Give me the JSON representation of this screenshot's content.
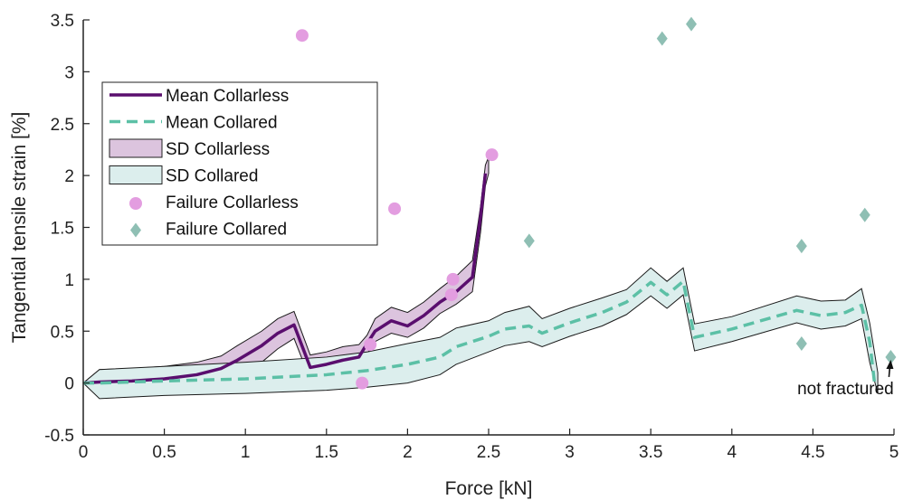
{
  "chart_data": {
    "type": "line",
    "xlabel": "Force [kN]",
    "ylabel": "Tangential tensile strain [%]",
    "xlim": [
      0,
      5
    ],
    "ylim": [
      -0.5,
      3.5
    ],
    "xticks": [
      0,
      0.5,
      1,
      1.5,
      2,
      2.5,
      3,
      3.5,
      4,
      4.5,
      5
    ],
    "xtick_labels": [
      "0",
      "0.5",
      "1",
      "1.5",
      "2",
      "2.5",
      "3",
      "3.5",
      "4",
      "4.5",
      "5"
    ],
    "yticks": [
      -0.5,
      0,
      0.5,
      1,
      1.5,
      2,
      2.5,
      3,
      3.5
    ],
    "ytick_labels": [
      "-0.5",
      "0",
      "0.5",
      "1",
      "1.5",
      "2",
      "2.5",
      "3",
      "3.5"
    ],
    "grid": false,
    "legend_position": "upper-left",
    "series": [
      {
        "name": "Mean Collarless",
        "kind": "line",
        "style": "solid",
        "color": "#5a0e6e",
        "x": [
          0,
          0.1,
          0.3,
          0.5,
          0.7,
          0.85,
          0.95,
          1.1,
          1.2,
          1.3,
          1.4,
          1.5,
          1.6,
          1.7,
          1.75,
          1.8,
          1.9,
          2.0,
          2.1,
          2.2,
          2.3,
          2.4,
          2.45,
          2.48
        ],
        "y": [
          0,
          0.01,
          0.02,
          0.04,
          0.08,
          0.14,
          0.22,
          0.36,
          0.48,
          0.56,
          0.15,
          0.18,
          0.22,
          0.25,
          0.38,
          0.5,
          0.6,
          0.55,
          0.65,
          0.78,
          0.88,
          1.02,
          1.6,
          2.02
        ]
      },
      {
        "name": "Mean Collared",
        "kind": "line",
        "style": "dashed",
        "color": "#5cc0a6",
        "x": [
          0,
          0.1,
          0.5,
          1.0,
          1.5,
          1.75,
          2.0,
          2.2,
          2.3,
          2.5,
          2.6,
          2.75,
          2.83,
          3.0,
          3.2,
          3.35,
          3.5,
          3.6,
          3.7,
          3.77,
          4.0,
          4.4,
          4.55,
          4.7,
          4.8,
          4.85,
          4.88
        ],
        "y": [
          0,
          0.0,
          0.02,
          0.04,
          0.08,
          0.12,
          0.18,
          0.25,
          0.35,
          0.45,
          0.52,
          0.55,
          0.48,
          0.58,
          0.68,
          0.78,
          0.97,
          0.85,
          0.98,
          0.44,
          0.52,
          0.7,
          0.65,
          0.68,
          0.75,
          0.4,
          0.0
        ]
      },
      {
        "name": "SD Collarless",
        "kind": "band",
        "color": "#dcc4de",
        "x": [
          0,
          0.1,
          0.3,
          0.5,
          0.7,
          0.85,
          0.95,
          1.1,
          1.2,
          1.3,
          1.4,
          1.5,
          1.6,
          1.7,
          1.75,
          1.8,
          1.9,
          2.0,
          2.1,
          2.2,
          2.3,
          2.4,
          2.45,
          2.48,
          2.5
        ],
        "upper": [
          0,
          0.13,
          0.14,
          0.16,
          0.2,
          0.26,
          0.36,
          0.5,
          0.62,
          0.69,
          0.27,
          0.3,
          0.35,
          0.37,
          0.46,
          0.62,
          0.73,
          0.68,
          0.78,
          0.91,
          1.03,
          1.18,
          1.7,
          2.1,
          2.18
        ],
        "lower": [
          0,
          -0.13,
          -0.12,
          -0.1,
          -0.06,
          -0.01,
          0.06,
          0.2,
          0.33,
          0.43,
          0.03,
          0.06,
          0.1,
          0.13,
          0.28,
          0.4,
          0.48,
          0.44,
          0.53,
          0.67,
          0.76,
          0.88,
          1.45,
          1.9,
          2.02
        ]
      },
      {
        "name": "SD Collared",
        "kind": "band",
        "color": "#dceeed",
        "x": [
          0,
          0.1,
          0.5,
          1.0,
          1.5,
          1.75,
          2.0,
          2.2,
          2.3,
          2.5,
          2.6,
          2.75,
          2.83,
          3.0,
          3.2,
          3.35,
          3.5,
          3.6,
          3.7,
          3.77,
          4.0,
          4.4,
          4.55,
          4.7,
          4.8,
          4.85,
          4.9
        ],
        "upper": [
          0,
          0.13,
          0.16,
          0.2,
          0.25,
          0.3,
          0.38,
          0.44,
          0.53,
          0.6,
          0.68,
          0.74,
          0.62,
          0.72,
          0.82,
          0.9,
          1.11,
          0.98,
          1.11,
          0.57,
          0.64,
          0.84,
          0.79,
          0.8,
          0.91,
          0.58,
          0.1
        ],
        "lower": [
          0,
          -0.15,
          -0.12,
          -0.1,
          -0.07,
          -0.04,
          0.0,
          0.08,
          0.18,
          0.3,
          0.36,
          0.4,
          0.35,
          0.45,
          0.55,
          0.66,
          0.84,
          0.72,
          0.85,
          0.31,
          0.4,
          0.58,
          0.52,
          0.55,
          0.62,
          0.2,
          -0.1
        ]
      },
      {
        "name": "Failure Collarless",
        "kind": "scatter",
        "marker": "circle",
        "color": "#e39de0",
        "x": [
          1.35,
          1.92,
          2.52,
          1.72,
          1.77,
          2.28,
          2.27
        ],
        "y": [
          3.35,
          1.68,
          2.2,
          0.0,
          0.37,
          1.0,
          0.85
        ]
      },
      {
        "name": "Failure Collared",
        "kind": "scatter",
        "marker": "diamond",
        "color": "#8fbfb4",
        "x": [
          3.57,
          3.75,
          2.75,
          4.82,
          4.43,
          4.43,
          4.98
        ],
        "y": [
          3.32,
          3.46,
          1.37,
          1.62,
          1.32,
          0.38,
          0.25
        ]
      }
    ],
    "annotations": [
      {
        "text": "not fractured",
        "x": 4.98,
        "y": 0.25
      }
    ]
  }
}
